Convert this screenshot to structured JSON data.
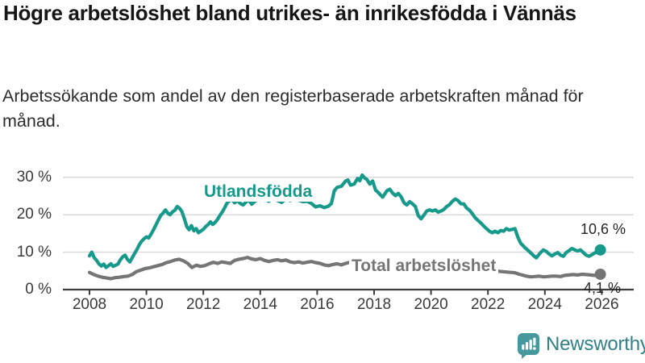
{
  "header": {
    "title": "Högre arbetslöshet bland utrikes- än inrikesfödda i Vännäs",
    "subtitle": "Arbetssökande som andel av den registerbaserade arbetskraften månad för månad."
  },
  "branding": {
    "logo_text": "Newsworthy",
    "logo_icon": "bar-chart-exclamation-speech-bubble-icon",
    "icon_color": "#45989B",
    "text_color": "#2F8087"
  },
  "chart_data": {
    "type": "line",
    "title": "Högre arbetslöshet bland utrikes- än inrikesfödda i Vännäs",
    "subtitle": "Arbetssökande som andel av den registerbaserade arbetskraften månad för månad.",
    "unit": "%",
    "grid": "horizontal-only",
    "legend_position": "inline-labels",
    "xlim": [
      2007.8,
      2026.4
    ],
    "ylim": [
      0,
      32
    ],
    "x_ticks": [
      2008,
      2010,
      2012,
      2014,
      2016,
      2018,
      2020,
      2022,
      2024,
      2026
    ],
    "y_ticks": [
      {
        "value": 0,
        "label": "0 %"
      },
      {
        "value": 10,
        "label": "10 %"
      },
      {
        "value": 20,
        "label": "20 %"
      },
      {
        "value": 30,
        "label": "30 %"
      }
    ],
    "colors": {
      "grid": "#DBDBDB",
      "axis": "#3D3D3D",
      "tick_text": "#3A3A3A"
    },
    "series": [
      {
        "name": "Total arbetslöshet",
        "color": "#757575",
        "end_value": 4.1,
        "end_label": "4,1 %",
        "points": [
          [
            2008.0,
            4.6
          ],
          [
            2008.15,
            4.0
          ],
          [
            2008.3,
            3.6
          ],
          [
            2008.45,
            3.3
          ],
          [
            2008.6,
            3.1
          ],
          [
            2008.75,
            2.9
          ],
          [
            2008.9,
            3.2
          ],
          [
            2009.05,
            3.3
          ],
          [
            2009.2,
            3.5
          ],
          [
            2009.35,
            3.6
          ],
          [
            2009.5,
            4.0
          ],
          [
            2009.65,
            4.8
          ],
          [
            2009.8,
            5.2
          ],
          [
            2009.95,
            5.6
          ],
          [
            2010.1,
            5.8
          ],
          [
            2010.25,
            6.1
          ],
          [
            2010.4,
            6.4
          ],
          [
            2010.55,
            6.7
          ],
          [
            2010.7,
            7.2
          ],
          [
            2010.85,
            7.5
          ],
          [
            2011.0,
            7.9
          ],
          [
            2011.15,
            8.1
          ],
          [
            2011.3,
            7.7
          ],
          [
            2011.45,
            7.0
          ],
          [
            2011.6,
            5.9
          ],
          [
            2011.75,
            6.5
          ],
          [
            2011.9,
            6.2
          ],
          [
            2012.05,
            6.4
          ],
          [
            2012.2,
            6.9
          ],
          [
            2012.35,
            7.3
          ],
          [
            2012.5,
            7.0
          ],
          [
            2012.65,
            7.4
          ],
          [
            2012.8,
            7.2
          ],
          [
            2012.95,
            7.0
          ],
          [
            2013.1,
            7.8
          ],
          [
            2013.25,
            8.1
          ],
          [
            2013.4,
            8.3
          ],
          [
            2013.55,
            8.6
          ],
          [
            2013.7,
            8.2
          ],
          [
            2013.85,
            8.0
          ],
          [
            2014.0,
            8.3
          ],
          [
            2014.15,
            7.8
          ],
          [
            2014.3,
            7.5
          ],
          [
            2014.45,
            7.8
          ],
          [
            2014.6,
            8.0
          ],
          [
            2014.75,
            7.7
          ],
          [
            2014.9,
            7.9
          ],
          [
            2015.05,
            7.4
          ],
          [
            2015.2,
            7.2
          ],
          [
            2015.35,
            7.4
          ],
          [
            2015.5,
            7.1
          ],
          [
            2015.65,
            7.3
          ],
          [
            2015.8,
            7.5
          ],
          [
            2015.95,
            7.2
          ],
          [
            2016.1,
            7.0
          ],
          [
            2016.25,
            6.6
          ],
          [
            2016.4,
            6.4
          ],
          [
            2016.55,
            6.7
          ],
          [
            2016.7,
            6.9
          ],
          [
            2016.85,
            6.6
          ],
          [
            2017.0,
            7.0
          ],
          [
            2017.15,
            7.3
          ],
          [
            2017.3,
            7.0
          ],
          [
            2017.45,
            6.8
          ],
          [
            2017.6,
            6.9
          ],
          [
            2017.8,
            6.7
          ],
          [
            2018.0,
            7.0
          ],
          [
            2018.3,
            6.6
          ],
          [
            2018.6,
            6.3
          ],
          [
            2018.9,
            6.1
          ],
          [
            2019.2,
            5.9
          ],
          [
            2019.5,
            5.6
          ],
          [
            2019.8,
            5.8
          ],
          [
            2020.1,
            6.2
          ],
          [
            2020.4,
            6.5
          ],
          [
            2020.7,
            6.3
          ],
          [
            2021.0,
            6.0
          ],
          [
            2021.3,
            5.7
          ],
          [
            2021.6,
            5.4
          ],
          [
            2021.9,
            5.2
          ],
          [
            2022.2,
            5.0
          ],
          [
            2022.5,
            4.8
          ],
          [
            2022.8,
            4.6
          ],
          [
            2022.95,
            4.5
          ],
          [
            2023.1,
            4.1
          ],
          [
            2023.2,
            3.9
          ],
          [
            2023.35,
            3.6
          ],
          [
            2023.5,
            3.4
          ],
          [
            2023.65,
            3.5
          ],
          [
            2023.8,
            3.6
          ],
          [
            2023.95,
            3.4
          ],
          [
            2024.1,
            3.5
          ],
          [
            2024.25,
            3.6
          ],
          [
            2024.4,
            3.6
          ],
          [
            2024.55,
            3.5
          ],
          [
            2024.7,
            3.8
          ],
          [
            2024.85,
            3.9
          ],
          [
            2025.0,
            4.0
          ],
          [
            2025.15,
            3.9
          ],
          [
            2025.3,
            4.1
          ],
          [
            2025.45,
            4.0
          ],
          [
            2025.6,
            3.9
          ],
          [
            2025.75,
            3.8
          ],
          [
            2025.95,
            4.1
          ]
        ]
      },
      {
        "name": "Utlandsfödda",
        "color": "#17998B",
        "end_value": 10.6,
        "end_label": "10,6 %",
        "points": [
          [
            2008.0,
            9.0
          ],
          [
            2008.08,
            10.0
          ],
          [
            2008.17,
            8.5
          ],
          [
            2008.25,
            7.8
          ],
          [
            2008.33,
            6.9
          ],
          [
            2008.42,
            6.3
          ],
          [
            2008.5,
            6.8
          ],
          [
            2008.58,
            5.9
          ],
          [
            2008.67,
            6.4
          ],
          [
            2008.75,
            6.9
          ],
          [
            2008.83,
            6.2
          ],
          [
            2008.92,
            6.5
          ],
          [
            2009.0,
            6.8
          ],
          [
            2009.08,
            7.9
          ],
          [
            2009.17,
            8.8
          ],
          [
            2009.25,
            9.2
          ],
          [
            2009.33,
            8.1
          ],
          [
            2009.42,
            7.4
          ],
          [
            2009.5,
            8.5
          ],
          [
            2009.58,
            9.6
          ],
          [
            2009.67,
            10.8
          ],
          [
            2009.75,
            12.0
          ],
          [
            2009.83,
            12.9
          ],
          [
            2009.92,
            13.6
          ],
          [
            2010.0,
            14.1
          ],
          [
            2010.08,
            13.8
          ],
          [
            2010.17,
            14.9
          ],
          [
            2010.25,
            16.0
          ],
          [
            2010.33,
            17.2
          ],
          [
            2010.42,
            18.6
          ],
          [
            2010.5,
            19.8
          ],
          [
            2010.58,
            20.4
          ],
          [
            2010.67,
            21.3
          ],
          [
            2010.75,
            20.4
          ],
          [
            2010.83,
            20.0
          ],
          [
            2010.92,
            20.8
          ],
          [
            2011.0,
            21.2
          ],
          [
            2011.08,
            22.2
          ],
          [
            2011.17,
            21.7
          ],
          [
            2011.25,
            20.8
          ],
          [
            2011.33,
            19.0
          ],
          [
            2011.42,
            16.8
          ],
          [
            2011.5,
            16.0
          ],
          [
            2011.58,
            17.1
          ],
          [
            2011.67,
            15.7
          ],
          [
            2011.75,
            16.3
          ],
          [
            2011.83,
            15.2
          ],
          [
            2011.92,
            15.7
          ],
          [
            2012.0,
            16.1
          ],
          [
            2012.08,
            16.8
          ],
          [
            2012.17,
            17.4
          ],
          [
            2012.25,
            18.1
          ],
          [
            2012.33,
            17.4
          ],
          [
            2012.42,
            18.0
          ],
          [
            2012.5,
            18.8
          ],
          [
            2012.58,
            19.8
          ],
          [
            2012.67,
            20.8
          ],
          [
            2012.75,
            21.9
          ],
          [
            2012.83,
            23.1
          ],
          [
            2012.92,
            23.8
          ],
          [
            2013.0,
            24.1
          ],
          [
            2013.1,
            23.2
          ],
          [
            2013.2,
            23.8
          ],
          [
            2013.3,
            23.0
          ],
          [
            2013.4,
            22.6
          ],
          [
            2013.5,
            23.4
          ],
          [
            2013.6,
            23.9
          ],
          [
            2013.7,
            22.8
          ],
          [
            2013.8,
            23.5
          ],
          [
            2013.9,
            24.1
          ],
          [
            2014.0,
            23.9
          ],
          [
            2014.15,
            24.3
          ],
          [
            2014.3,
            23.6
          ],
          [
            2014.45,
            24.5
          ],
          [
            2014.6,
            23.8
          ],
          [
            2014.75,
            23.3
          ],
          [
            2014.9,
            24.2
          ],
          [
            2015.05,
            23.8
          ],
          [
            2015.2,
            24.4
          ],
          [
            2015.35,
            23.9
          ],
          [
            2015.5,
            23.5
          ],
          [
            2015.65,
            23.6
          ],
          [
            2015.8,
            23.0
          ],
          [
            2015.95,
            22.1
          ],
          [
            2016.1,
            22.4
          ],
          [
            2016.25,
            21.9
          ],
          [
            2016.4,
            22.3
          ],
          [
            2016.5,
            23.0
          ],
          [
            2016.6,
            26.4
          ],
          [
            2016.7,
            27.3
          ],
          [
            2016.85,
            27.6
          ],
          [
            2017.0,
            29.0
          ],
          [
            2017.08,
            29.3
          ],
          [
            2017.17,
            27.9
          ],
          [
            2017.3,
            28.2
          ],
          [
            2017.42,
            29.7
          ],
          [
            2017.5,
            29.1
          ],
          [
            2017.58,
            30.6
          ],
          [
            2017.67,
            29.8
          ],
          [
            2017.75,
            29.4
          ],
          [
            2017.85,
            28.2
          ],
          [
            2017.95,
            29.0
          ],
          [
            2018.05,
            26.6
          ],
          [
            2018.15,
            25.9
          ],
          [
            2018.3,
            24.7
          ],
          [
            2018.45,
            26.4
          ],
          [
            2018.55,
            26.8
          ],
          [
            2018.65,
            25.8
          ],
          [
            2018.75,
            25.1
          ],
          [
            2018.85,
            25.7
          ],
          [
            2018.95,
            24.8
          ],
          [
            2019.05,
            23.2
          ],
          [
            2019.15,
            22.6
          ],
          [
            2019.25,
            23.5
          ],
          [
            2019.35,
            22.9
          ],
          [
            2019.45,
            22.2
          ],
          [
            2019.55,
            19.8
          ],
          [
            2019.65,
            18.9
          ],
          [
            2019.75,
            19.9
          ],
          [
            2019.85,
            21.0
          ],
          [
            2019.95,
            21.3
          ],
          [
            2020.05,
            21.0
          ],
          [
            2020.15,
            21.3
          ],
          [
            2020.25,
            20.7
          ],
          [
            2020.35,
            21.0
          ],
          [
            2020.45,
            21.4
          ],
          [
            2020.55,
            22.2
          ],
          [
            2020.65,
            22.7
          ],
          [
            2020.75,
            23.6
          ],
          [
            2020.85,
            24.2
          ],
          [
            2020.95,
            23.8
          ],
          [
            2021.05,
            22.9
          ],
          [
            2021.15,
            22.9
          ],
          [
            2021.25,
            21.8
          ],
          [
            2021.35,
            21.2
          ],
          [
            2021.45,
            20.3
          ],
          [
            2021.55,
            19.2
          ],
          [
            2021.65,
            18.5
          ],
          [
            2021.75,
            17.8
          ],
          [
            2021.85,
            17.0
          ],
          [
            2021.95,
            16.3
          ],
          [
            2022.05,
            15.6
          ],
          [
            2022.15,
            15.2
          ],
          [
            2022.25,
            15.6
          ],
          [
            2022.35,
            15.2
          ],
          [
            2022.45,
            15.8
          ],
          [
            2022.55,
            15.6
          ],
          [
            2022.65,
            16.3
          ],
          [
            2022.75,
            15.9
          ],
          [
            2022.85,
            16.1
          ],
          [
            2022.95,
            16.3
          ],
          [
            2023.05,
            14.0
          ],
          [
            2023.15,
            12.4
          ],
          [
            2023.3,
            11.2
          ],
          [
            2023.45,
            10.2
          ],
          [
            2023.6,
            9.1
          ],
          [
            2023.7,
            8.5
          ],
          [
            2023.85,
            9.9
          ],
          [
            2023.95,
            10.6
          ],
          [
            2024.05,
            10.2
          ],
          [
            2024.15,
            9.5
          ],
          [
            2024.25,
            9.0
          ],
          [
            2024.35,
            9.5
          ],
          [
            2024.45,
            9.9
          ],
          [
            2024.55,
            9.2
          ],
          [
            2024.65,
            8.9
          ],
          [
            2024.75,
            9.9
          ],
          [
            2024.85,
            10.4
          ],
          [
            2024.95,
            11.0
          ],
          [
            2025.05,
            10.6
          ],
          [
            2025.15,
            10.3
          ],
          [
            2025.25,
            10.6
          ],
          [
            2025.35,
            9.9
          ],
          [
            2025.45,
            9.2
          ],
          [
            2025.55,
            8.9
          ],
          [
            2025.65,
            9.3
          ],
          [
            2025.75,
            9.8
          ],
          [
            2025.85,
            10.0
          ],
          [
            2025.95,
            10.6
          ]
        ]
      }
    ]
  }
}
